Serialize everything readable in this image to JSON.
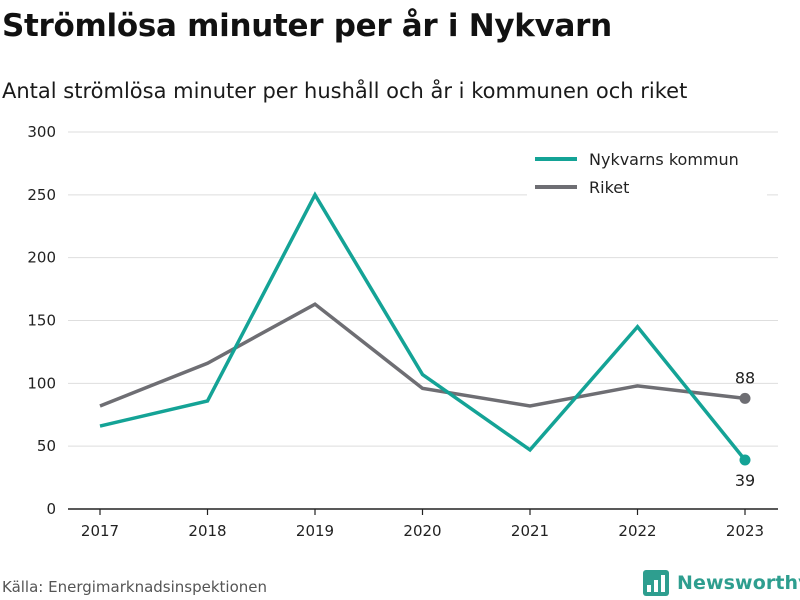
{
  "title": "Strömlösa minuter per år i Nykvarn",
  "subtitle": "Antal strömlösa minuter per hushåll och år i kommunen och riket",
  "source": "Källa: Energimarknadsinspektionen",
  "brand": {
    "name": "Newsworthy",
    "icon": "newsworthy-logo-icon",
    "color": "#2e9e8f"
  },
  "chart_data": {
    "type": "line",
    "x": [
      "2017",
      "2018",
      "2019",
      "2020",
      "2021",
      "2022",
      "2023"
    ],
    "ylim": [
      0,
      300
    ],
    "yticks": [
      0,
      50,
      100,
      150,
      200,
      250,
      300
    ],
    "grid": true,
    "legend_position": "top-right",
    "series": [
      {
        "name": "Nykvarns kommun",
        "color": "#14a396",
        "values": [
          66,
          86,
          250,
          107,
          47,
          145,
          39
        ],
        "last_label": "39",
        "last_label_position": "below"
      },
      {
        "name": "Riket",
        "color": "#6e6e73",
        "values": [
          82,
          116,
          163,
          96,
          82,
          98,
          88
        ],
        "last_label": "88",
        "last_label_position": "above"
      }
    ]
  }
}
